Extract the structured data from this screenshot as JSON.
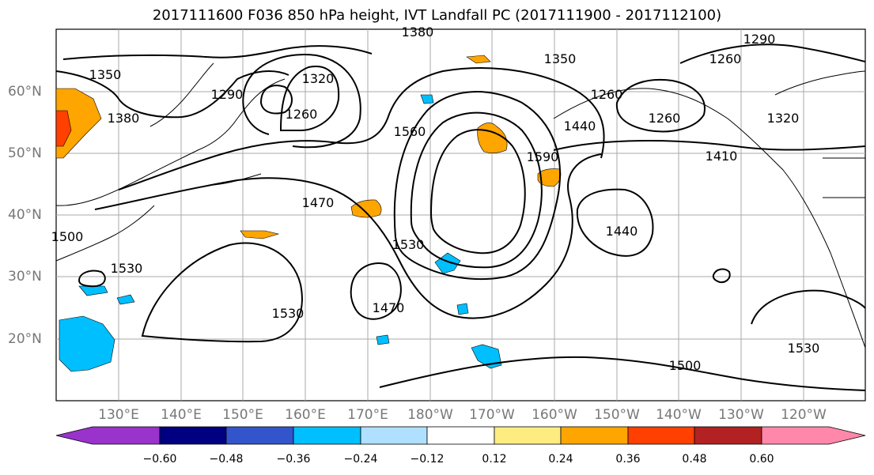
{
  "title": "2017111600 F036 850 hPa height, IVT Landfall PC (2017111900 - 2017112100)",
  "lat_labels": [
    "60°N",
    "50°N",
    "40°N",
    "30°N",
    "20°N"
  ],
  "lon_labels": [
    "130°E",
    "140°E",
    "150°E",
    "160°E",
    "170°E",
    "180°W",
    "170°W",
    "160°W",
    "150°W",
    "140°W",
    "130°W",
    "120°W"
  ],
  "contour_labels": [
    "1380",
    "1350",
    "1380",
    "1290",
    "1320",
    "1260",
    "1350",
    "1260",
    "1290",
    "1260",
    "1260",
    "1320",
    "1560",
    "1440",
    "1590",
    "1410",
    "1470",
    "1440",
    "1530",
    "1500",
    "1530",
    "1470",
    "1530",
    "1500",
    "1530"
  ],
  "colorbar": {
    "ticks": [
      "−0.60",
      "−0.48",
      "−0.36",
      "−0.24",
      "−0.12",
      "0.12",
      "0.24",
      "0.36",
      "0.48",
      "0.60"
    ],
    "colors": [
      "#9933cc",
      "#000080",
      "#3355cc",
      "#00bfff",
      "#b0e0ff",
      "#ffffff",
      "#ffec80",
      "#ffa500",
      "#ff4000",
      "#b22222",
      "#ff88aa"
    ]
  },
  "map_colors": {
    "positive_strong": "#ffa500",
    "positive_weak": "#ffec80",
    "positive_extreme": "#ff4000",
    "negative": "#00bfff",
    "grid": "#aaaaaa"
  }
}
